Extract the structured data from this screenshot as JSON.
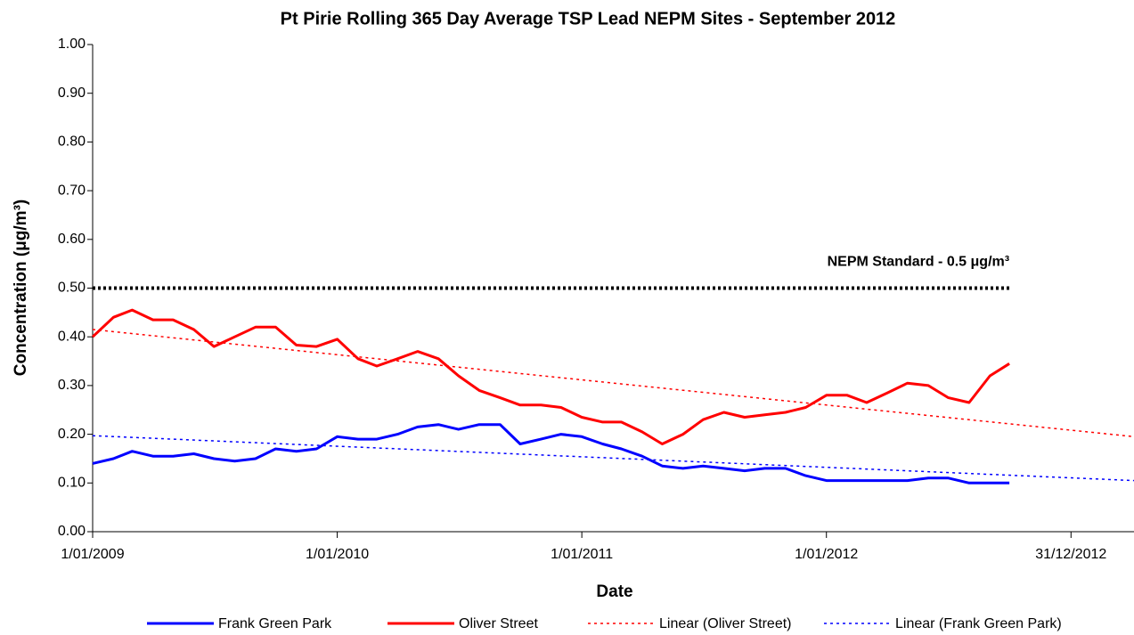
{
  "chart_data": {
    "type": "line",
    "title": "Pt Pirie Rolling 365 Day Average TSP Lead NEPM Sites - September 2012",
    "x_label": "Date",
    "y_label": "Concentration (μg/m³)",
    "xlim": [
      "2009-01-01",
      "2013-04-04"
    ],
    "xticks": [
      {
        "value": "2009-01-01",
        "label": "1/01/2009"
      },
      {
        "value": "2010-01-01",
        "label": "1/01/2010"
      },
      {
        "value": "2011-01-01",
        "label": "1/01/2011"
      },
      {
        "value": "2012-01-01",
        "label": "1/01/2012"
      },
      {
        "value": "2012-12-31",
        "label": "31/12/2012"
      }
    ],
    "ylim": [
      0,
      1
    ],
    "yticks": [
      {
        "value": 0,
        "label": "0.00"
      },
      {
        "value": 0.1,
        "label": "0.10"
      },
      {
        "value": 0.2,
        "label": "0.20"
      },
      {
        "value": 0.3,
        "label": "0.30"
      },
      {
        "value": 0.4,
        "label": "0.40"
      },
      {
        "value": 0.5,
        "label": "0.50"
      },
      {
        "value": 0.6,
        "label": "0.60"
      },
      {
        "value": 0.7,
        "label": "0.70"
      },
      {
        "value": 0.8,
        "label": "0.80"
      },
      {
        "value": 0.9,
        "label": "0.90"
      },
      {
        "value": 1,
        "label": "1.00"
      }
    ],
    "legend": "bottom",
    "reference_line": {
      "x": [
        "2009-01-01",
        "2012-09-30"
      ],
      "value": 0.5,
      "color": "#000000",
      "label": "NEPM Standard - 0.5 μg/m³"
    },
    "series": [
      {
        "name": "Frank Green Park",
        "color": "#0000ff",
        "style": "solid",
        "x": [
          "2009-01-01",
          "2009-02-01",
          "2009-03-01",
          "2009-04-01",
          "2009-05-01",
          "2009-06-01",
          "2009-07-01",
          "2009-08-01",
          "2009-09-01",
          "2009-10-01",
          "2009-11-01",
          "2009-12-01",
          "2010-01-01",
          "2010-02-01",
          "2010-03-01",
          "2010-04-01",
          "2010-05-01",
          "2010-06-01",
          "2010-07-01",
          "2010-08-01",
          "2010-09-01",
          "2010-10-01",
          "2010-11-01",
          "2010-12-01",
          "2011-01-01",
          "2011-02-01",
          "2011-03-01",
          "2011-04-01",
          "2011-05-01",
          "2011-06-01",
          "2011-07-01",
          "2011-08-01",
          "2011-09-01",
          "2011-10-01",
          "2011-11-01",
          "2011-12-01",
          "2012-01-01",
          "2012-02-01",
          "2012-03-01",
          "2012-04-01",
          "2012-05-01",
          "2012-06-01",
          "2012-07-01",
          "2012-08-01",
          "2012-09-01",
          "2012-09-30"
        ],
        "values": [
          0.14,
          0.15,
          0.165,
          0.155,
          0.155,
          0.16,
          0.15,
          0.145,
          0.15,
          0.17,
          0.165,
          0.17,
          0.195,
          0.19,
          0.19,
          0.2,
          0.215,
          0.22,
          0.21,
          0.22,
          0.22,
          0.18,
          0.19,
          0.2,
          0.195,
          0.18,
          0.17,
          0.155,
          0.135,
          0.13,
          0.135,
          0.13,
          0.125,
          0.13,
          0.13,
          0.115,
          0.105,
          0.105,
          0.105,
          0.105,
          0.105,
          0.11,
          0.11,
          0.1,
          0.1,
          0.1
        ]
      },
      {
        "name": "Oliver Street",
        "color": "#ff0000",
        "style": "solid",
        "x": [
          "2009-01-01",
          "2009-02-01",
          "2009-03-01",
          "2009-04-01",
          "2009-05-01",
          "2009-06-01",
          "2009-07-01",
          "2009-08-01",
          "2009-09-01",
          "2009-10-01",
          "2009-11-01",
          "2009-12-01",
          "2010-01-01",
          "2010-02-01",
          "2010-03-01",
          "2010-04-01",
          "2010-05-01",
          "2010-06-01",
          "2010-07-01",
          "2010-08-01",
          "2010-09-01",
          "2010-10-01",
          "2010-11-01",
          "2010-12-01",
          "2011-01-01",
          "2011-02-01",
          "2011-03-01",
          "2011-04-01",
          "2011-05-01",
          "2011-06-01",
          "2011-07-01",
          "2011-08-01",
          "2011-09-01",
          "2011-10-01",
          "2011-11-01",
          "2011-12-01",
          "2012-01-01",
          "2012-02-01",
          "2012-03-01",
          "2012-04-01",
          "2012-05-01",
          "2012-06-01",
          "2012-07-01",
          "2012-08-01",
          "2012-09-01",
          "2012-09-30"
        ],
        "values": [
          0.4,
          0.44,
          0.455,
          0.435,
          0.435,
          0.415,
          0.38,
          0.4,
          0.42,
          0.42,
          0.383,
          0.38,
          0.395,
          0.355,
          0.34,
          0.355,
          0.37,
          0.355,
          0.32,
          0.29,
          0.275,
          0.26,
          0.26,
          0.255,
          0.235,
          0.225,
          0.225,
          0.205,
          0.18,
          0.2,
          0.23,
          0.245,
          0.235,
          0.24,
          0.245,
          0.255,
          0.28,
          0.28,
          0.265,
          0.285,
          0.305,
          0.3,
          0.275,
          0.265,
          0.32,
          0.345
        ]
      },
      {
        "name": "Linear (Oliver Street)",
        "color": "#ff0000",
        "style": "dotted",
        "x": [
          "2009-01-01",
          "2013-04-04"
        ],
        "values": [
          0.415,
          0.195
        ]
      },
      {
        "name": "Linear (Frank Green Park)",
        "color": "#0000ff",
        "style": "dotted",
        "x": [
          "2009-01-01",
          "2013-04-04"
        ],
        "values": [
          0.197,
          0.105
        ]
      }
    ]
  }
}
